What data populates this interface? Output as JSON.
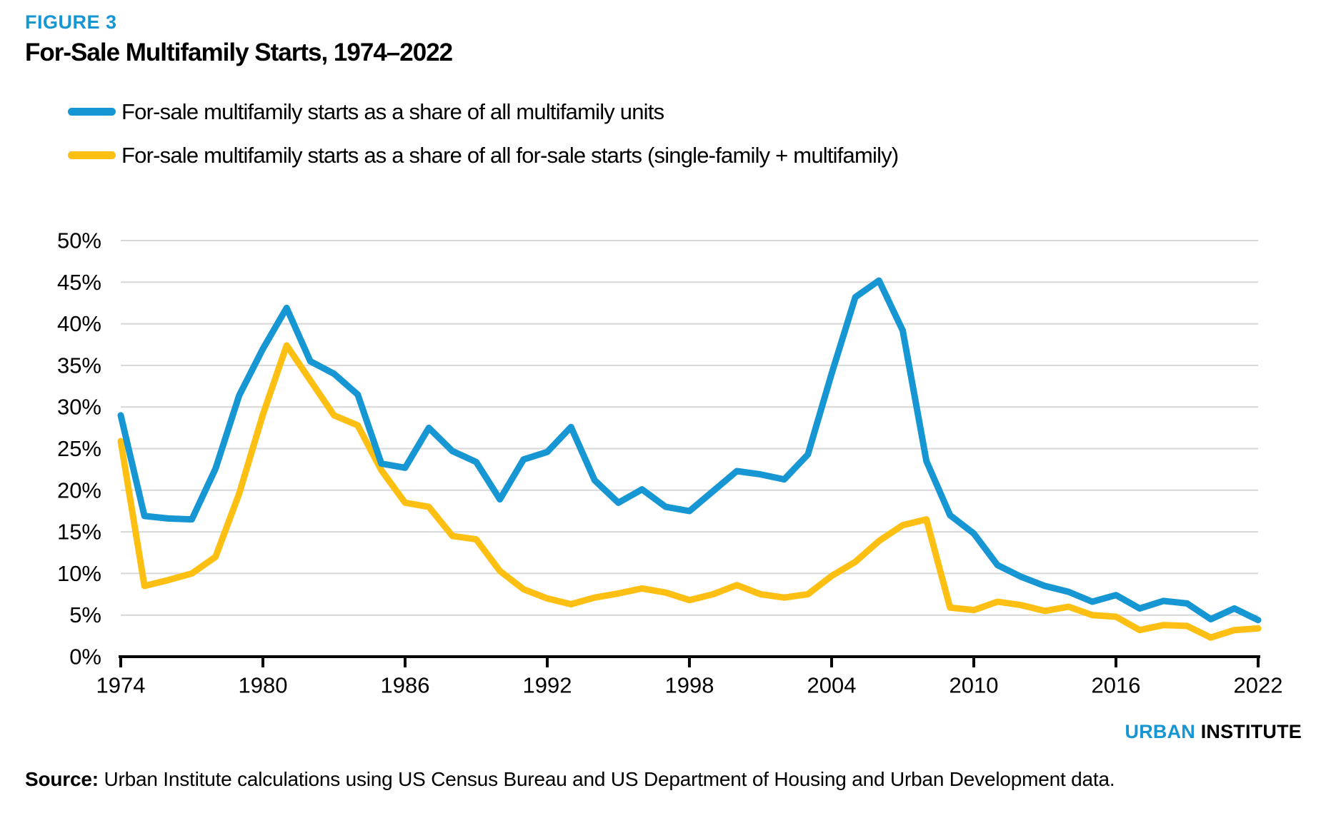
{
  "figure_label": "FIGURE 3",
  "title": "For-Sale Multifamily Starts, 1974–2022",
  "footer": {
    "logo_urban": "URBAN",
    "logo_institute": "INSTITUTE",
    "source_label": "Source:",
    "source_text": " Urban Institute calculations using US Census Bureau and US Department of Housing and Urban Development data."
  },
  "colors": {
    "accent_blue": "#1696d2",
    "accent_yellow": "#fdbf11",
    "gridline": "#d7d7d7",
    "axis": "#000000"
  },
  "chart_data": {
    "type": "line",
    "title": "For-Sale Multifamily Starts, 1974–2022",
    "xlabel": "",
    "ylabel": "",
    "ylim": [
      0,
      50
    ],
    "ytick_step": 5,
    "ytick_suffix": "%",
    "grid": true,
    "legend_position": "top-left",
    "xticks": [
      1974,
      1980,
      1986,
      1992,
      1998,
      2004,
      2010,
      2016,
      2022
    ],
    "x": [
      1974,
      1975,
      1976,
      1977,
      1978,
      1979,
      1980,
      1981,
      1982,
      1983,
      1984,
      1985,
      1986,
      1987,
      1988,
      1989,
      1990,
      1991,
      1992,
      1993,
      1994,
      1995,
      1996,
      1997,
      1998,
      1999,
      2000,
      2001,
      2002,
      2003,
      2004,
      2005,
      2006,
      2007,
      2008,
      2009,
      2010,
      2011,
      2012,
      2013,
      2014,
      2015,
      2016,
      2017,
      2018,
      2019,
      2020,
      2021,
      2022
    ],
    "series": [
      {
        "name": "For-sale multifamily starts as a share of all multifamily units",
        "color": "#1696d2",
        "values": [
          29.0,
          16.9,
          16.6,
          16.5,
          22.6,
          31.4,
          37.0,
          41.9,
          35.5,
          34.0,
          31.5,
          23.2,
          22.7,
          27.5,
          24.7,
          23.4,
          18.9,
          23.7,
          24.6,
          27.6,
          21.2,
          18.5,
          20.1,
          18.0,
          17.5,
          19.9,
          22.3,
          21.9,
          21.3,
          24.3,
          34.0,
          43.2,
          45.2,
          39.2,
          23.5,
          17.0,
          14.8,
          11.0,
          9.6,
          8.5,
          7.8,
          6.6,
          7.4,
          5.8,
          6.7,
          6.4,
          4.5,
          5.8,
          4.4
        ]
      },
      {
        "name": "For-sale multifamily starts as a share of all for-sale starts (single-family + multifamily)",
        "color": "#fdbf11",
        "values": [
          25.9,
          8.5,
          9.2,
          10.0,
          12.0,
          19.6,
          29.1,
          37.4,
          33.2,
          29.0,
          27.8,
          22.4,
          18.5,
          18.0,
          14.5,
          14.1,
          10.3,
          8.1,
          7.0,
          6.3,
          7.1,
          7.6,
          8.2,
          7.7,
          6.8,
          7.5,
          8.6,
          7.5,
          7.1,
          7.5,
          9.7,
          11.4,
          13.9,
          15.8,
          16.5,
          5.9,
          5.6,
          6.6,
          6.2,
          5.5,
          6.0,
          5.0,
          4.8,
          3.2,
          3.8,
          3.7,
          2.3,
          3.2,
          3.4
        ]
      }
    ]
  }
}
